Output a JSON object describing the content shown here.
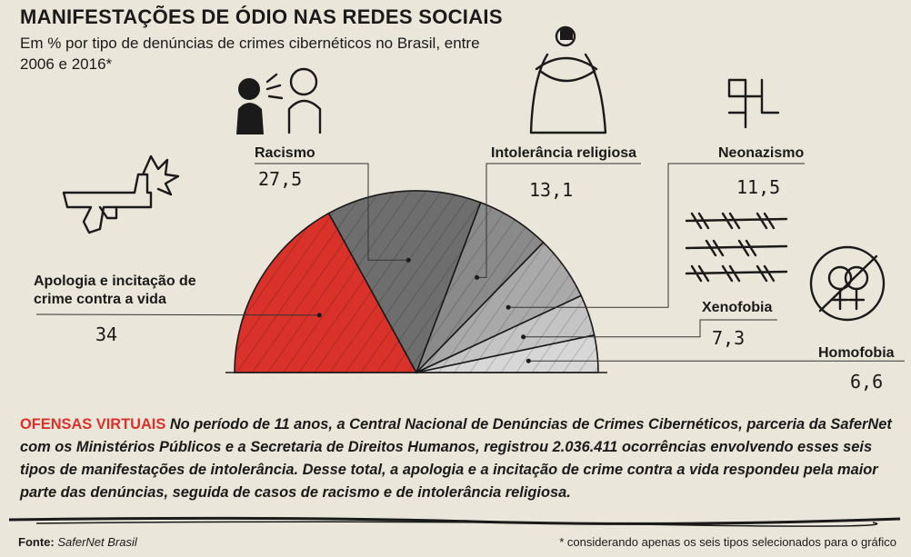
{
  "title": "MANIFESTAÇÕES DE ÓDIO NAS REDES SOCIAIS",
  "subtitle": "Em % por tipo de denúncias de crimes cibernéticos no Brasil, entre 2006 e 2016*",
  "chart_data": {
    "type": "pie",
    "variant": "half-pie",
    "title": "MANIFESTAÇÕES DE ÓDIO NAS REDES SOCIAIS",
    "subtitle": "Em % por tipo de denúncias de crimes cibernéticos no Brasil, entre 2006 e 2016*",
    "categories": [
      "Apologia e incitação de crime contra a vida",
      "Racismo",
      "Intolerância religiosa",
      "Neonazismo",
      "Xenofobia",
      "Homofobia"
    ],
    "values": [
      34,
      27.5,
      13.1,
      11.5,
      7.3,
      6.6
    ],
    "value_labels": [
      "34",
      "27,5",
      "13,1",
      "11,5",
      "7,3",
      "6,6"
    ],
    "colors": [
      "#d8322b",
      "#6e6e6e",
      "#8a8a8a",
      "#a9a9a9",
      "#c4c4c4",
      "#d7d7d7"
    ],
    "unit": "%"
  },
  "paragraph": {
    "lead": "OFENSAS VIRTUAIS",
    "text": " No período de 11 anos, a Central Nacional de Denúncias de Crimes Cibernéticos, parceria da SaferNet com os Ministérios Públicos e a Secretaria de Direitos Humanos, registrou 2.036.411 ocorrências envolvendo esses seis tipos de manifestações de intolerância. Desse total, a apologia e a incitação de crime contra a vida respondeu pela maior parte das denúncias, seguida de casos de racismo e de intolerância religiosa."
  },
  "footer": {
    "source_label": "Fonte:",
    "source_name": "SaferNet Brasil",
    "note": "* considerando apenas os seis tipos selecionados para o gráfico"
  },
  "icons": [
    "gun-icon",
    "racism-people-icon",
    "religious-woman-icon",
    "swastika-icon",
    "barbed-wire-icon",
    "homophobia-symbol-icon"
  ]
}
